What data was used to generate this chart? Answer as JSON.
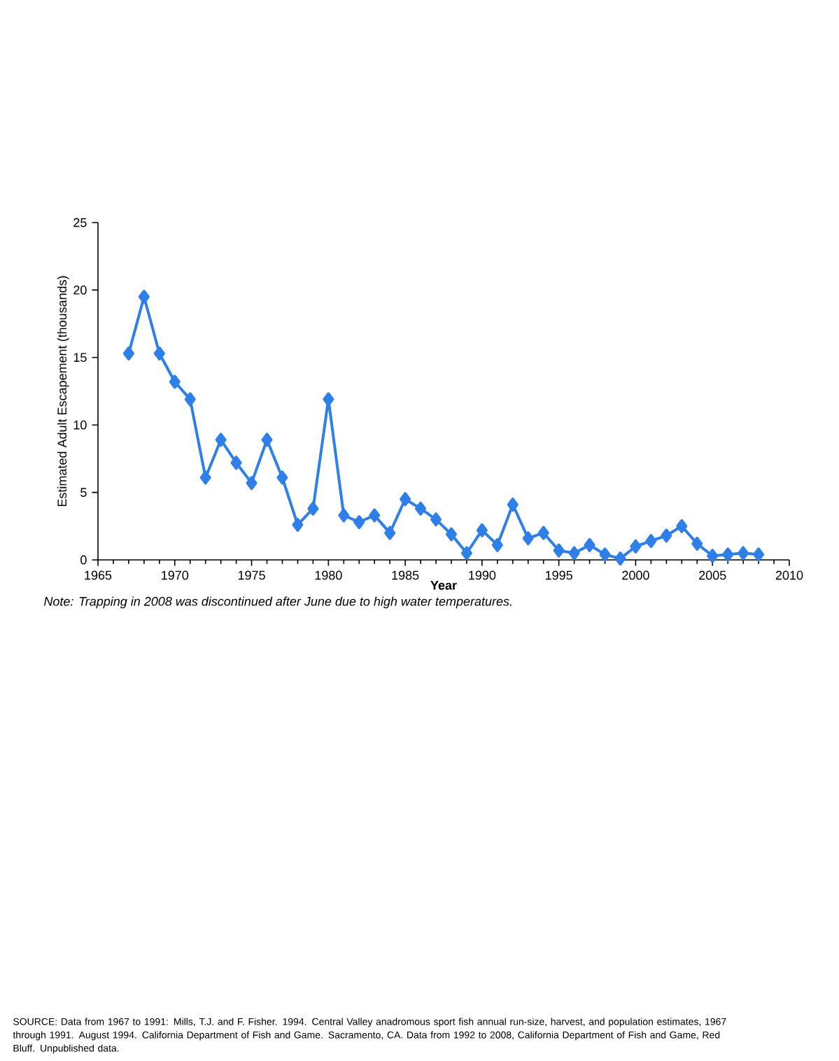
{
  "chart_data": {
    "type": "line",
    "xlabel": "Year",
    "ylabel": "Estimated Adult Escapement (thousands)",
    "x": [
      1967,
      1968,
      1969,
      1970,
      1971,
      1972,
      1973,
      1974,
      1975,
      1976,
      1977,
      1978,
      1979,
      1980,
      1981,
      1982,
      1983,
      1984,
      1985,
      1986,
      1987,
      1988,
      1989,
      1990,
      1991,
      1992,
      1993,
      1994,
      1995,
      1996,
      1997,
      1998,
      1999,
      2000,
      2001,
      2002,
      2003,
      2004,
      2005,
      2006,
      2007,
      2008
    ],
    "values": [
      15.3,
      19.5,
      15.3,
      13.2,
      11.9,
      6.1,
      8.9,
      7.2,
      5.7,
      8.9,
      6.1,
      2.6,
      3.8,
      11.9,
      3.3,
      2.8,
      3.3,
      2.0,
      4.5,
      3.8,
      3.0,
      1.9,
      0.5,
      2.2,
      1.1,
      4.1,
      1.6,
      2.0,
      0.7,
      0.5,
      1.1,
      0.4,
      0.1,
      1.0,
      1.4,
      1.8,
      2.5,
      1.2,
      0.3,
      0.4,
      0.5,
      0.4
    ],
    "color": "#2e7fe8",
    "marker": "diamond",
    "line_style": "solid",
    "xlim": [
      1965,
      2010
    ],
    "xticks": [
      1965,
      1970,
      1975,
      1980,
      1985,
      1990,
      1995,
      2000,
      2005,
      2010
    ],
    "ylim": [
      0,
      25
    ],
    "yticks": [
      0,
      5,
      10,
      15,
      20,
      25
    ],
    "annotations": [
      "Note: Trapping in 2008 was discontinued after June due to high water temperatures.",
      "SOURCE: Data from 1967 to 1991: Mills, T.J. and F. Fisher.  1994. Central Valley anadromous sport fish annual run-size, harvest, and population estimates, 1967 through 1991. August 1994.  California Department of Fish and Game. Sacramento, CA. Data from 1992 to 2008, California Department of Fish and Game, Red Bluff. Unpublished data."
    ]
  }
}
